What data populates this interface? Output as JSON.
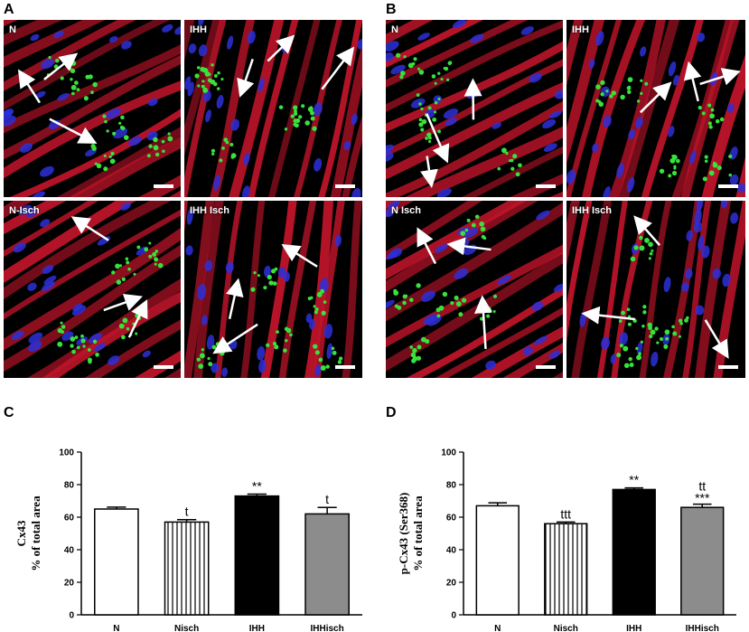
{
  "panels": {
    "A": {
      "letter": "A",
      "images": [
        {
          "label": "N",
          "hue": 0
        },
        {
          "label": "IHH",
          "hue": 1
        },
        {
          "label": "N-Isch",
          "hue": 2
        },
        {
          "label": "IHH Isch",
          "hue": 3
        }
      ]
    },
    "B": {
      "letter": "B",
      "images": [
        {
          "label": "N",
          "hue": 4
        },
        {
          "label": "IHH",
          "hue": 5
        },
        {
          "label": "N Isch",
          "hue": 6
        },
        {
          "label": "IHH Isch",
          "hue": 7
        }
      ]
    },
    "C": {
      "letter": "C"
    },
    "D": {
      "letter": "D"
    }
  },
  "colors": {
    "fiber": "#c0142a",
    "nuclei": "#2d2fd8",
    "cx43": "#37e23c",
    "arrow": "#ffffff",
    "bar_gray": "#8c8c8c"
  },
  "chart_data": [
    {
      "type": "bar",
      "ylabel_lines": [
        "Cx43",
        "% of total area"
      ],
      "categories": [
        "N",
        "Nisch",
        "IHH",
        "IHHisch"
      ],
      "values": [
        65,
        57,
        73,
        62
      ],
      "errors": [
        1.2,
        1.5,
        1.2,
        4
      ],
      "fills": [
        "white",
        "striped",
        "black",
        "gray"
      ],
      "annotations": [
        "",
        "t",
        "**",
        "t"
      ],
      "annotations_lower": [
        "",
        "",
        "",
        ""
      ],
      "ylim": [
        0,
        100
      ],
      "yticks": [
        "0",
        "20",
        "40",
        "60",
        "80",
        "100"
      ]
    },
    {
      "type": "bar",
      "ylabel_lines": [
        "p-Cx43 (Ser368)",
        "% of total area"
      ],
      "categories": [
        "N",
        "Nisch",
        "IHH",
        "IHHisch"
      ],
      "values": [
        67,
        56,
        77,
        66
      ],
      "errors": [
        1.8,
        1.0,
        1.0,
        2.0
      ],
      "fills": [
        "white",
        "striped",
        "black",
        "gray"
      ],
      "annotations": [
        "",
        "ttt",
        "**",
        "tt"
      ],
      "annotations_lower": [
        "",
        "",
        "",
        "***"
      ],
      "ylim": [
        0,
        100
      ],
      "yticks": [
        "0",
        "20",
        "40",
        "60",
        "80",
        "100"
      ]
    }
  ]
}
